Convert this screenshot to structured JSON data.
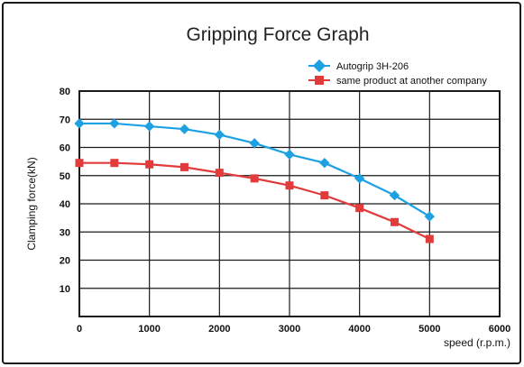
{
  "chart_data": {
    "type": "line",
    "title": "Gripping Force Graph",
    "xlabel": "speed (r.p.m.)",
    "ylabel": "Clamping force(kN)",
    "xlim": [
      0,
      6000
    ],
    "ylim": [
      0,
      80
    ],
    "x_ticks": [
      "0",
      "1000",
      "2000",
      "3000",
      "4000",
      "5000",
      "6000"
    ],
    "y_ticks": [
      "10",
      "20",
      "30",
      "40",
      "50",
      "60",
      "70",
      "80"
    ],
    "grid": true,
    "legend_position": "top-right",
    "series": [
      {
        "name": "Autogrip 3H-206",
        "color": "#1da1e2",
        "marker": "diamond",
        "x": [
          0,
          500,
          1000,
          1500,
          2000,
          2500,
          3000,
          3500,
          4000,
          4500,
          5000
        ],
        "y": [
          68.5,
          68.5,
          67.5,
          66.5,
          64.5,
          61.5,
          57.5,
          54.5,
          49,
          43,
          35.5
        ]
      },
      {
        "name": "same product at another company",
        "color": "#e23b3b",
        "marker": "square",
        "x": [
          0,
          500,
          1000,
          1500,
          2000,
          2500,
          3000,
          3500,
          4000,
          4500,
          5000
        ],
        "y": [
          54.5,
          54.5,
          54,
          53,
          51,
          49,
          46.5,
          43,
          38.5,
          33.5,
          27.5
        ]
      }
    ]
  }
}
